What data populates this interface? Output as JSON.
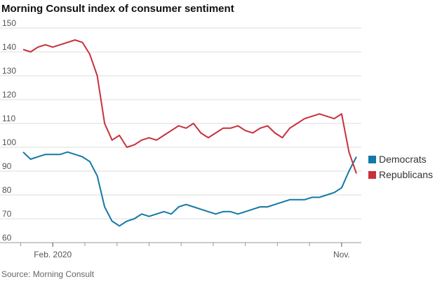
{
  "chart_data": {
    "type": "line",
    "title": "Morning Consult index of consumer sentiment",
    "source": "Source: Morning Consult",
    "categories": [
      null,
      null,
      null,
      null,
      "Feb. 2020",
      null,
      null,
      null,
      null,
      null,
      null,
      null,
      null,
      null,
      null,
      null,
      null,
      null,
      null,
      null,
      null,
      null,
      null,
      null,
      null,
      null,
      null,
      null,
      null,
      null,
      null,
      null,
      null,
      null,
      null,
      null,
      null,
      null,
      null,
      null,
      null,
      null,
      null,
      "Nov.",
      null,
      null
    ],
    "series": [
      {
        "name": "Democrats",
        "color": "#1478a8",
        "values": [
          98,
          95,
          96,
          97,
          97,
          97,
          98,
          97,
          96,
          94,
          88,
          75,
          69,
          67,
          69,
          70,
          72,
          71,
          72,
          73,
          72,
          75,
          76,
          75,
          74,
          73,
          72,
          73,
          73,
          72,
          73,
          74,
          75,
          75,
          76,
          77,
          78,
          78,
          78,
          79,
          79,
          80,
          81,
          83,
          90,
          96
        ]
      },
      {
        "name": "Republicans",
        "color": "#c8303a",
        "values": [
          141,
          140,
          142,
          143,
          142,
          143,
          144,
          145,
          144,
          139,
          130,
          110,
          103,
          105,
          100,
          101,
          103,
          104,
          103,
          105,
          107,
          109,
          108,
          110,
          106,
          104,
          106,
          108,
          108,
          109,
          107,
          106,
          108,
          109,
          106,
          104,
          108,
          110,
          112,
          113,
          114,
          113,
          112,
          114,
          98,
          89
        ]
      }
    ],
    "ylim": [
      60,
      150
    ],
    "yticks": [
      60,
      70,
      80,
      90,
      100,
      110,
      120,
      130,
      140,
      150
    ],
    "grid": true
  }
}
